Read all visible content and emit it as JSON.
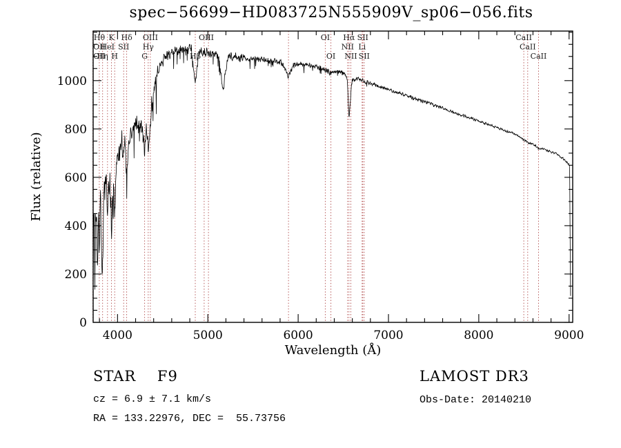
{
  "title": "spec−56699−HD083725N555909V_sp06−056.fits",
  "annotations": {
    "class_line": "STAR    F9",
    "cz_line": "cz = 6.9 ± 7.1 km/s",
    "radec_line": "RA = 133.22976, DEC =  55.73756",
    "survey_line": "LAMOST DR3",
    "obsdate_line": "Obs-Date: 20140210"
  },
  "chart_data": {
    "type": "line",
    "title": "spec−56699−HD083725N555909V_sp06−056.fits",
    "xlabel": "Wavelength (Å)",
    "ylabel": "Flux (relative)",
    "xlim": [
      3730,
      9040
    ],
    "ylim": [
      0,
      1205
    ],
    "x_ticks": [
      4000,
      5000,
      6000,
      7000,
      8000,
      9000
    ],
    "y_ticks": [
      0,
      200,
      400,
      600,
      800,
      1000
    ],
    "x_minor_step": 200,
    "y_minor_step": 50,
    "grid": false,
    "legend": "none",
    "line_color": "#000000",
    "marker_color": "#b04a4a",
    "label_color": "#1a1a1a",
    "spectrum_anchors": [
      [
        3730,
        120
      ],
      [
        3738,
        480
      ],
      [
        3750,
        300
      ],
      [
        3762,
        530
      ],
      [
        3775,
        230
      ],
      [
        3790,
        430
      ],
      [
        3798,
        330
      ],
      [
        3812,
        520
      ],
      [
        3830,
        170
      ],
      [
        3848,
        560
      ],
      [
        3868,
        600
      ],
      [
        3889,
        470
      ],
      [
        3910,
        640
      ],
      [
        3933,
        380
      ],
      [
        3950,
        610
      ],
      [
        3968,
        440
      ],
      [
        3990,
        660
      ],
      [
        4020,
        715
      ],
      [
        4050,
        760
      ],
      [
        4068,
        690
      ],
      [
        4085,
        730
      ],
      [
        4101,
        560
      ],
      [
        4125,
        770
      ],
      [
        4170,
        805
      ],
      [
        4220,
        825
      ],
      [
        4265,
        820
      ],
      [
        4300,
        735
      ],
      [
        4320,
        790
      ],
      [
        4340,
        700
      ],
      [
        4375,
        880
      ],
      [
        4415,
        990
      ],
      [
        4465,
        1055
      ],
      [
        4520,
        1090
      ],
      [
        4580,
        1110
      ],
      [
        4660,
        1120
      ],
      [
        4760,
        1130
      ],
      [
        4820,
        1130
      ],
      [
        4861,
        985
      ],
      [
        4900,
        1125
      ],
      [
        4960,
        1118
      ],
      [
        5010,
        1112
      ],
      [
        5070,
        1108
      ],
      [
        5125,
        1098
      ],
      [
        5170,
        955
      ],
      [
        5215,
        1088
      ],
      [
        5280,
        1102
      ],
      [
        5360,
        1094
      ],
      [
        5450,
        1090
      ],
      [
        5540,
        1087
      ],
      [
        5640,
        1085
      ],
      [
        5740,
        1080
      ],
      [
        5820,
        1075
      ],
      [
        5893,
        1018
      ],
      [
        5945,
        1062
      ],
      [
        6010,
        1070
      ],
      [
        6090,
        1066
      ],
      [
        6170,
        1060
      ],
      [
        6250,
        1053
      ],
      [
        6300,
        1044
      ],
      [
        6363,
        1032
      ],
      [
        6440,
        1038
      ],
      [
        6510,
        1028
      ],
      [
        6545,
        1008
      ],
      [
        6563,
        835
      ],
      [
        6595,
        1002
      ],
      [
        6650,
        1012
      ],
      [
        6720,
        998
      ],
      [
        6810,
        988
      ],
      [
        6910,
        974
      ],
      [
        7010,
        962
      ],
      [
        7110,
        950
      ],
      [
        7210,
        937
      ],
      [
        7310,
        924
      ],
      [
        7410,
        911
      ],
      [
        7510,
        898
      ],
      [
        7610,
        885
      ],
      [
        7710,
        871
      ],
      [
        7810,
        858
      ],
      [
        7910,
        845
      ],
      [
        8010,
        831
      ],
      [
        8110,
        818
      ],
      [
        8210,
        805
      ],
      [
        8310,
        791
      ],
      [
        8410,
        778
      ],
      [
        8498,
        756
      ],
      [
        8542,
        744
      ],
      [
        8600,
        738
      ],
      [
        8662,
        720
      ],
      [
        8760,
        712
      ],
      [
        8860,
        696
      ],
      [
        8950,
        672
      ],
      [
        9000,
        652
      ],
      [
        9006,
        645
      ],
      [
        9012,
        310
      ],
      [
        9018,
        15
      ]
    ],
    "noise_bands": [
      {
        "max": 3950,
        "amp": 95
      },
      {
        "max": 4100,
        "amp": 70
      },
      {
        "max": 4450,
        "amp": 50
      },
      {
        "max": 5000,
        "amp": 26
      },
      {
        "max": 5400,
        "amp": 22
      },
      {
        "max": 6000,
        "amp": 15
      },
      {
        "max": 6800,
        "amp": 12
      },
      {
        "max": 7600,
        "amp": 9
      },
      {
        "max": 9100,
        "amp": 6
      }
    ],
    "spectral_lines": {
      "marker_wavelengths": [
        3727,
        3798,
        3835,
        3889,
        3933,
        3968,
        4068,
        4101,
        4300,
        4340,
        4363,
        4861,
        4959,
        5007,
        5893,
        6300,
        6363,
        6548,
        6563,
        6583,
        6708,
        6716,
        6731,
        8498,
        8542,
        8662
      ],
      "labels": [
        {
          "text": "Hθ",
          "wl": 3798,
          "row": 1
        },
        {
          "text": "K",
          "wl": 3933,
          "row": 1
        },
        {
          "text": "Hδ",
          "wl": 4101,
          "row": 1
        },
        {
          "text": "OIII",
          "wl": 4363,
          "row": 1
        },
        {
          "text": "OIII",
          "wl": 4983,
          "row": 1
        },
        {
          "text": "OI",
          "wl": 6300,
          "row": 1
        },
        {
          "text": "Hα",
          "wl": 6563,
          "row": 1
        },
        {
          "text": "SII",
          "wl": 6716,
          "row": 1
        },
        {
          "text": "CaII",
          "wl": 8498,
          "row": 1
        },
        {
          "text": "OII",
          "wl": 3727,
          "row": 2
        },
        {
          "text": "HeI",
          "wl": 3889,
          "row": 2
        },
        {
          "text": "SII",
          "wl": 4068,
          "row": 2
        },
        {
          "text": "Hγ",
          "wl": 4340,
          "row": 2
        },
        {
          "text": "NII",
          "wl": 6548,
          "row": 2
        },
        {
          "text": "Li",
          "wl": 6708,
          "row": 2
        },
        {
          "text": "CaII",
          "wl": 8542,
          "row": 2
        },
        {
          "text": "OII",
          "wl": 3729,
          "row": 3
        },
        {
          "text": "Hη",
          "wl": 3835,
          "row": 3
        },
        {
          "text": "H",
          "wl": 3968,
          "row": 3
        },
        {
          "text": "G",
          "wl": 4300,
          "row": 3
        },
        {
          "text": "Hβ",
          "wl": 4861,
          "row": 3
        },
        {
          "text": "OI",
          "wl": 6363,
          "row": 3
        },
        {
          "text": "NII",
          "wl": 6583,
          "row": 3
        },
        {
          "text": "SII",
          "wl": 6731,
          "row": 3
        },
        {
          "text": "CaII",
          "wl": 8662,
          "row": 3
        }
      ]
    }
  }
}
